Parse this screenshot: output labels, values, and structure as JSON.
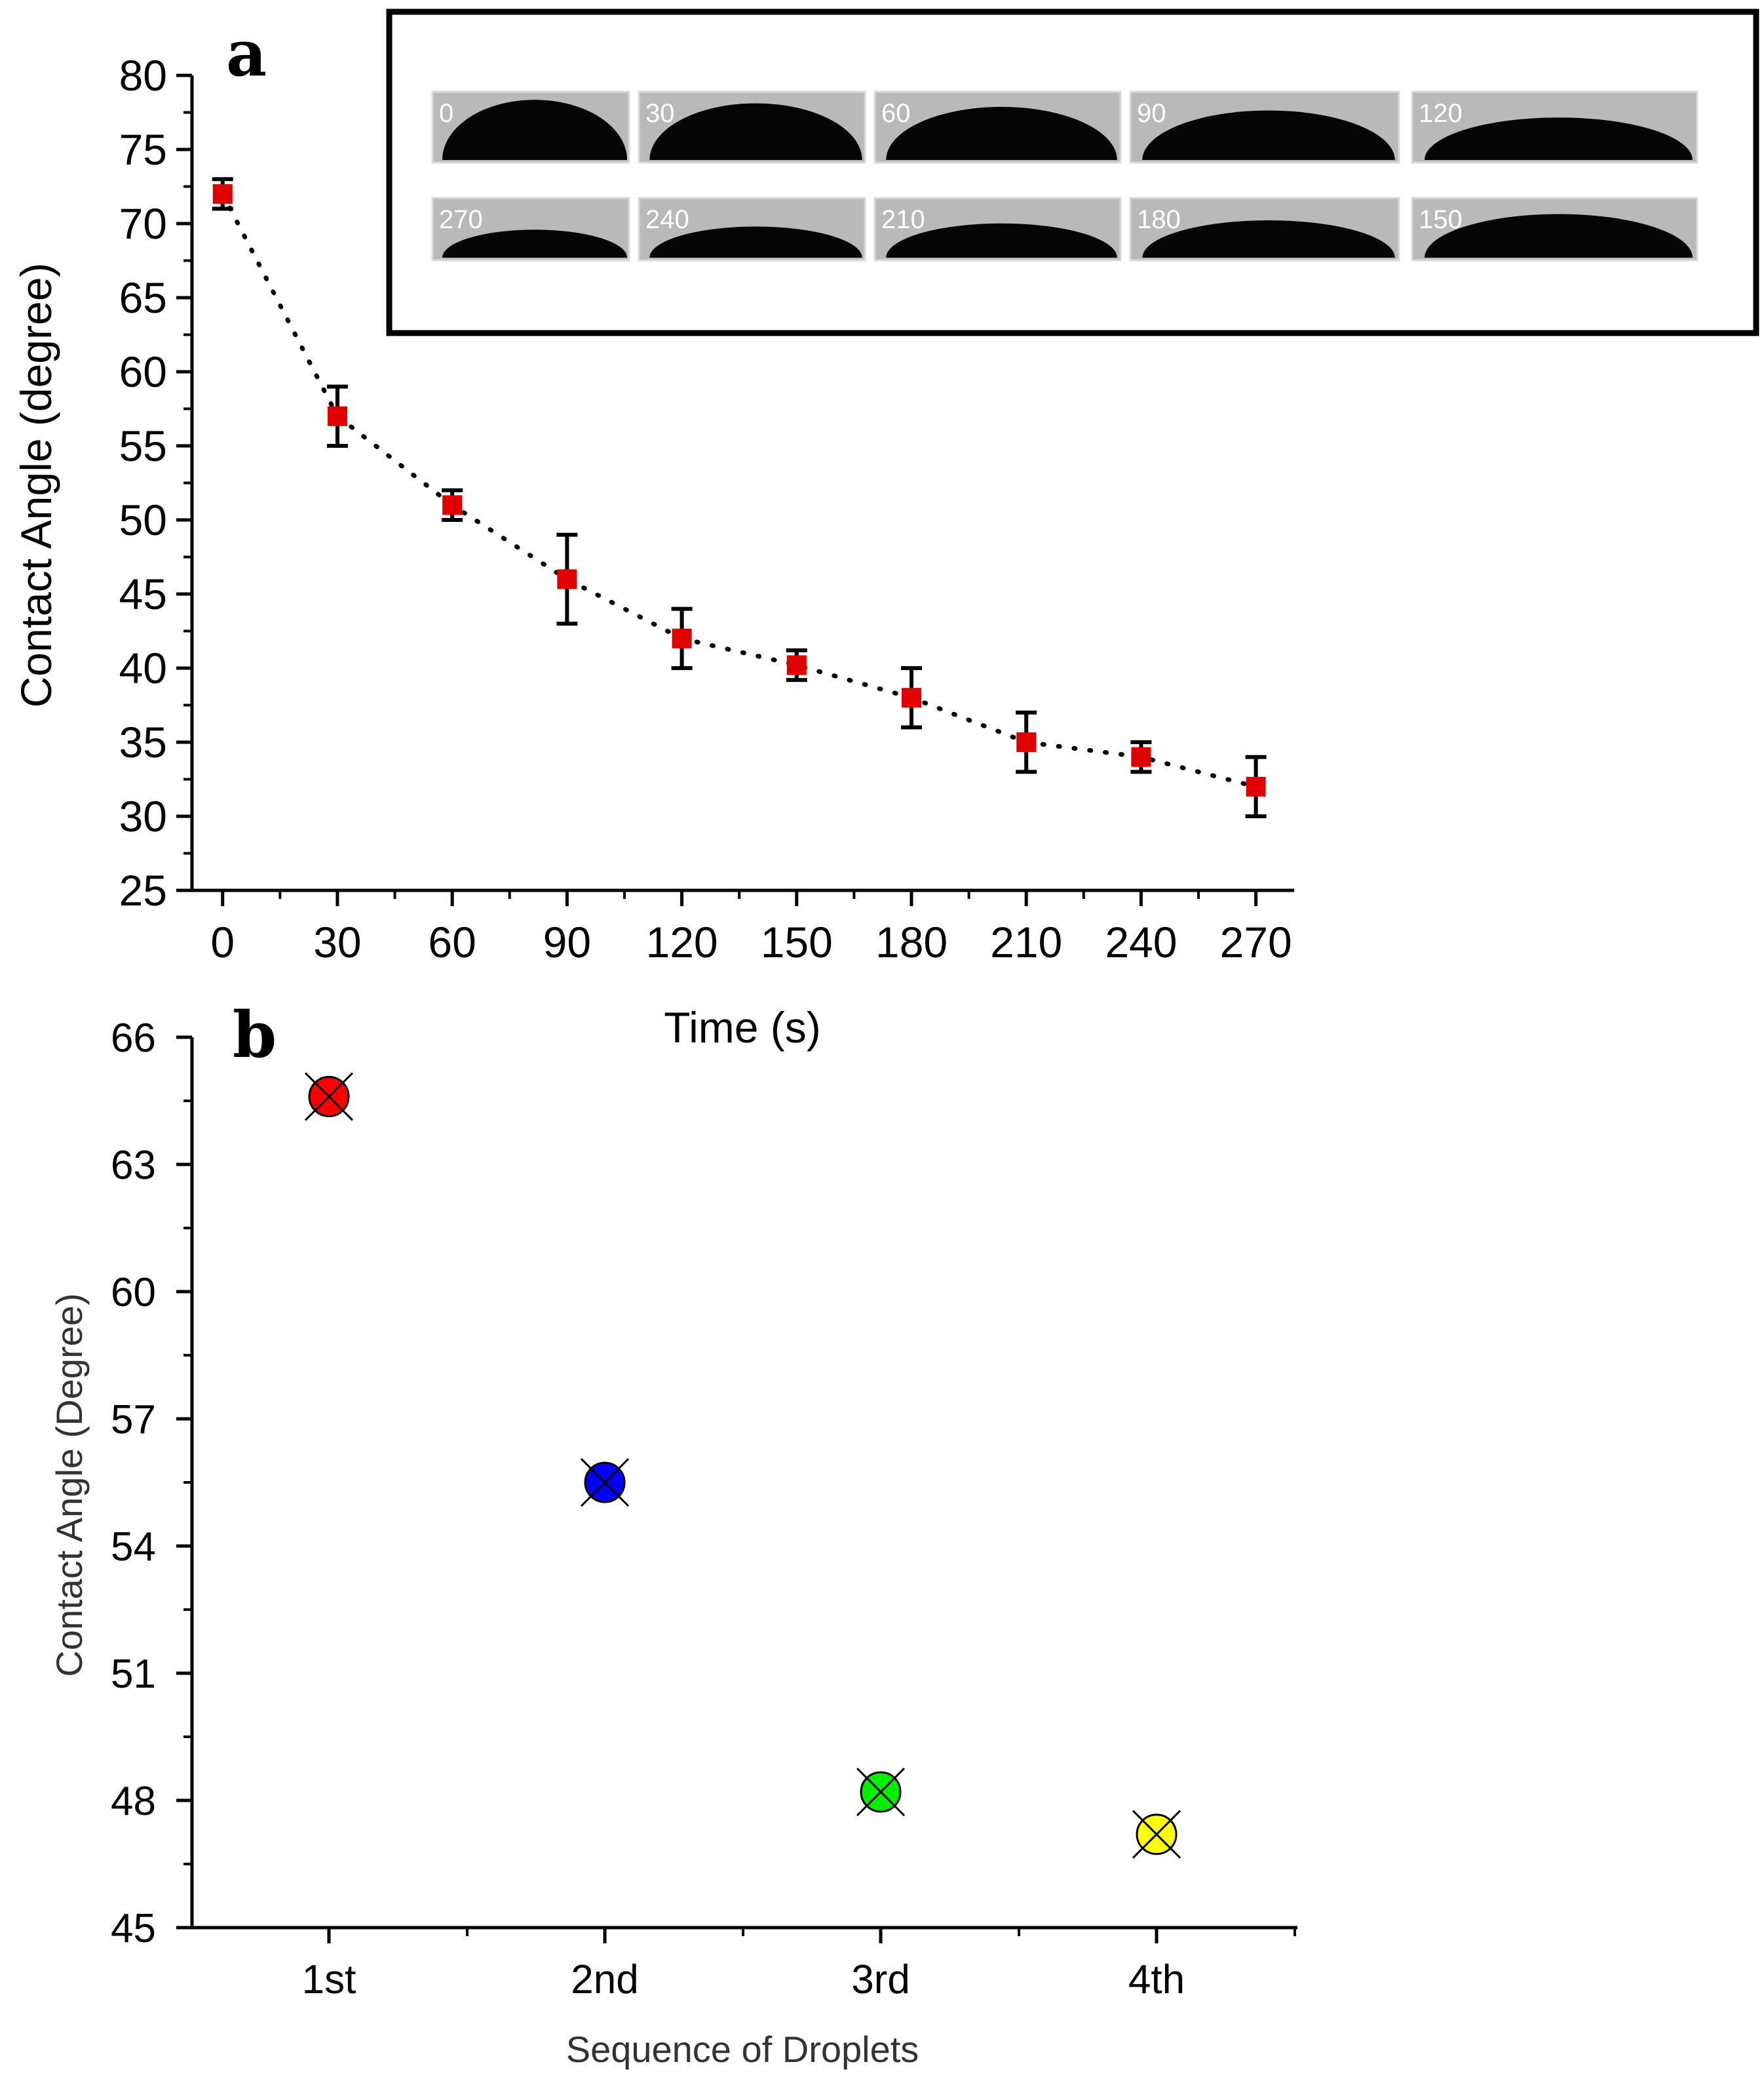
{
  "chart_data": [
    {
      "panel_label": "a",
      "type": "scatter",
      "xlabel": "Time (s)",
      "ylabel": "Contact Angle (degree)",
      "x_ticks": [
        "0",
        "30",
        "60",
        "90",
        "120",
        "150",
        "180",
        "210",
        "240",
        "270"
      ],
      "y_ticks": [
        "25",
        "30",
        "35",
        "40",
        "45",
        "50",
        "55",
        "60",
        "65",
        "70",
        "75",
        "80"
      ],
      "xlim": [
        -8,
        280
      ],
      "ylim": [
        25,
        80
      ],
      "x": [
        0,
        30,
        60,
        90,
        120,
        150,
        180,
        210,
        240,
        270
      ],
      "y": [
        72,
        57,
        51,
        46,
        42,
        40.2,
        38,
        35,
        34,
        32
      ],
      "error": [
        1,
        2,
        1,
        3,
        2,
        1,
        2,
        2,
        1,
        2
      ],
      "marker_color": "#e00000",
      "line_style": "dotted",
      "inset": {
        "top_row": [
          "0",
          "30",
          "60",
          "90",
          "120"
        ],
        "bottom_row": [
          "270",
          "240",
          "210",
          "180",
          "150"
        ]
      }
    },
    {
      "panel_label": "b",
      "type": "scatter",
      "xlabel": "Sequence of Droplets",
      "ylabel": "Contact Angle (Degree)",
      "categories": [
        "1st",
        "2nd",
        "3rd",
        "4th"
      ],
      "y_ticks": [
        "45",
        "48",
        "51",
        "54",
        "57",
        "60",
        "63",
        "66"
      ],
      "ylim": [
        45,
        66
      ],
      "values": [
        64.6,
        55.5,
        48.2,
        47.2
      ],
      "colors": [
        "#ff0000",
        "#0000ff",
        "#00ee00",
        "#ffff00"
      ]
    }
  ]
}
